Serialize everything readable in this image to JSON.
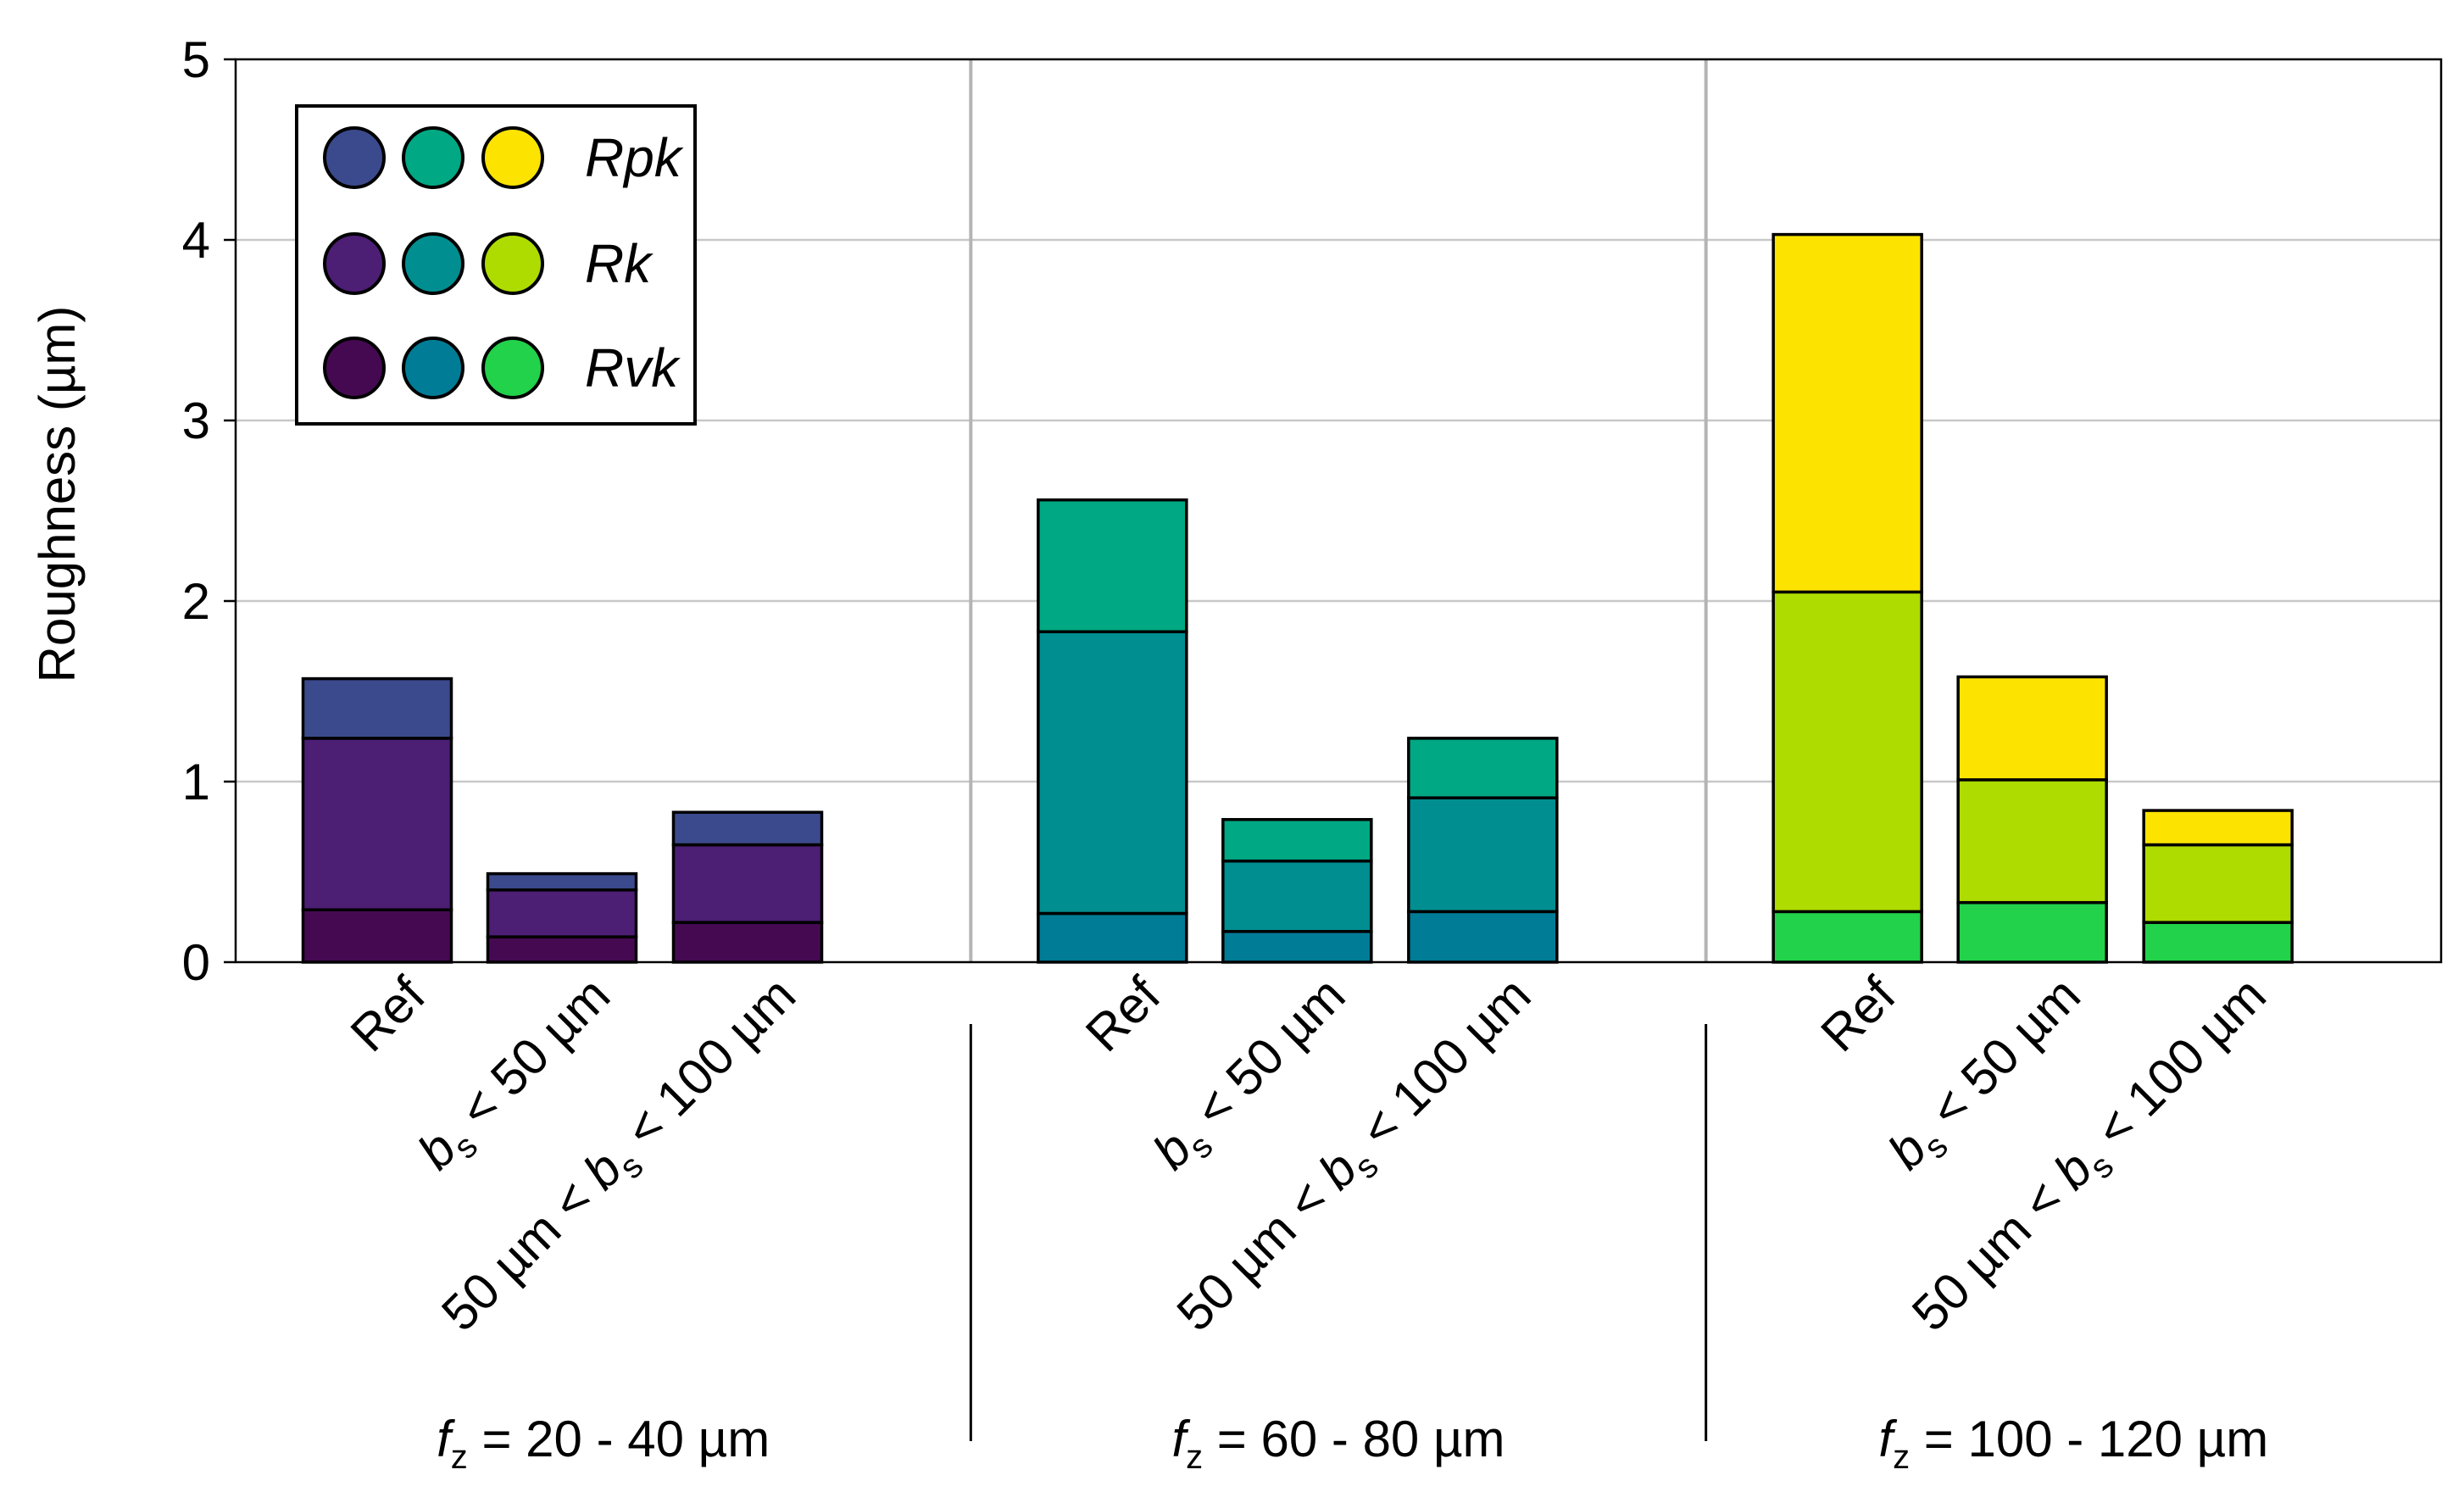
{
  "chart_data": {
    "type": "bar",
    "stacked": true,
    "ylabel": "Roughness (µm)",
    "ylim": [
      0,
      5
    ],
    "yticks": [
      "0",
      "1",
      "2",
      "3",
      "4",
      "5"
    ],
    "grid": true,
    "legend_position": "top-left",
    "legend": {
      "rows": [
        {
          "label": "Rpk",
          "colors": [
            "#3b4a8c",
            "#00a883",
            "#fde400"
          ]
        },
        {
          "label": "Rk",
          "colors": [
            "#4c1e74",
            "#008e90",
            "#aedc00"
          ]
        },
        {
          "label": "Rvk",
          "colors": [
            "#450952",
            "#007c96",
            "#22d24a"
          ]
        }
      ]
    },
    "groups": [
      {
        "label_var": "f",
        "label_sub": "z",
        "label_rest": " = 20 - 40 µm",
        "colors": {
          "Rvk": "#450952",
          "Rk": "#4c1e74",
          "Rpk": "#3b4a8c"
        },
        "bars": [
          {
            "Rvk": 0.29,
            "Rk": 0.95,
            "Rpk": 0.33
          },
          {
            "Rvk": 0.14,
            "Rk": 0.26,
            "Rpk": 0.09
          },
          {
            "Rvk": 0.22,
            "Rk": 0.43,
            "Rpk": 0.18
          }
        ]
      },
      {
        "label_var": "f",
        "label_sub": "z",
        "label_rest": " = 60 - 80 µm",
        "colors": {
          "Rvk": "#007c96",
          "Rk": "#008e90",
          "Rpk": "#00a883"
        },
        "bars": [
          {
            "Rvk": 0.27,
            "Rk": 1.56,
            "Rpk": 0.73
          },
          {
            "Rvk": 0.17,
            "Rk": 0.39,
            "Rpk": 0.23
          },
          {
            "Rvk": 0.28,
            "Rk": 0.63,
            "Rpk": 0.33
          }
        ]
      },
      {
        "label_var": "f",
        "label_sub": "z",
        "label_rest": " = 100 - 120 µm",
        "colors": {
          "Rvk": "#22d24a",
          "Rk": "#aedc00",
          "Rpk": "#fde400"
        },
        "bars": [
          {
            "Rvk": 0.28,
            "Rk": 1.77,
            "Rpk": 1.98
          },
          {
            "Rvk": 0.33,
            "Rk": 0.68,
            "Rpk": 0.57
          },
          {
            "Rvk": 0.22,
            "Rk": 0.43,
            "Rpk": 0.19
          }
        ]
      }
    ],
    "category_labels": [
      {
        "text": "Ref"
      },
      {
        "pre": "",
        "var": "b",
        "sub": "s",
        "post": " < 50 µm"
      },
      {
        "pre": "50 µm < ",
        "var": "b",
        "sub": "s",
        "post": " < 100 µm"
      }
    ]
  }
}
